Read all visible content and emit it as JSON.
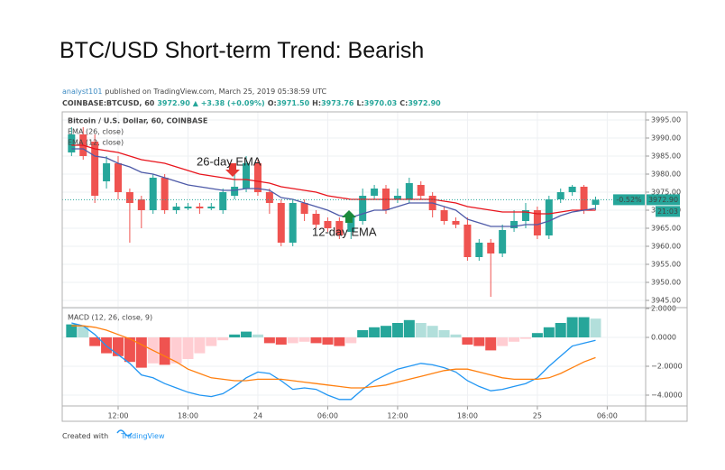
{
  "header": {
    "title": "BTC/USD Short-term Trend: Bearish",
    "author": "analyst101",
    "published": "published on TradingView.com, March 25, 2019 05:38:59 UTC",
    "symbol": "COINBASE:BTCUSD, 60",
    "price": "3972.90",
    "change": "▲ +3.38 (+0.09%)",
    "ohlc": [
      {
        "label": "O:",
        "value": "3971.50"
      },
      {
        "label": "H:",
        "value": "3973.76"
      },
      {
        "label": "L:",
        "value": "3970.03"
      },
      {
        "label": "C:",
        "value": "3972.90"
      }
    ]
  },
  "footer": {
    "text": "Created with",
    "brand": "TradingView"
  },
  "chart_data": [
    {
      "type": "candlestick",
      "legend_title": "Bitcoin / U.S. Dollar, 60, COINBASE",
      "up_color": "#26a69a",
      "down_color": "#ef5350",
      "open": [
        3986,
        3991,
        3989,
        3978,
        3983,
        3975,
        3973,
        3970,
        3979,
        3970,
        3970.5,
        3971,
        3970.5,
        3970,
        3974,
        3976,
        3983,
        3975,
        3972,
        3961,
        3972,
        3969,
        3967,
        3967,
        3964,
        3967,
        3974,
        3976,
        3973,
        3973,
        3977,
        3974,
        3970,
        3967,
        3966,
        3957,
        3961,
        3958,
        3965,
        3967,
        3970,
        3963,
        3973,
        3975,
        3976.5,
        3971.5
      ],
      "high": [
        3993,
        3993,
        3991,
        3985,
        3985,
        3976,
        3974,
        3980,
        3980,
        3972,
        3972,
        3972,
        3972,
        3976,
        3983,
        3985,
        3984,
        3976,
        3973,
        3973,
        3973,
        3970,
        3968,
        3968,
        3969,
        3976,
        3977,
        3977,
        3976,
        3979,
        3978,
        3975,
        3971,
        3968,
        3968,
        3962,
        3962,
        3966,
        3970,
        3972,
        3971,
        3974,
        3976,
        3977,
        3977,
        3973.76
      ],
      "low": [
        3985,
        3984,
        3972,
        3976,
        3973,
        3961,
        3965,
        3969,
        3969,
        3969,
        3970,
        3969,
        3970,
        3969,
        3973,
        3975,
        3974,
        3969,
        3960,
        3960,
        3967,
        3965,
        3964,
        3962,
        3962,
        3966,
        3973,
        3969,
        3972,
        3972,
        3973,
        3968,
        3966,
        3965,
        3956,
        3956,
        3946,
        3957,
        3964,
        3965,
        3962,
        3962,
        3972,
        3974,
        3969,
        3970.03
      ],
      "close": [
        3991,
        3985,
        3974,
        3983,
        3975,
        3972,
        3970,
        3979,
        3970,
        3971,
        3971,
        3970.5,
        3971,
        3975,
        3976.5,
        3983,
        3975,
        3972,
        3961,
        3972,
        3969,
        3966,
        3965,
        3963,
        3968,
        3974,
        3976,
        3970,
        3974,
        3977.5,
        3974,
        3970,
        3967,
        3966,
        3957,
        3961,
        3958,
        3964.5,
        3967,
        3970,
        3963,
        3973,
        3975,
        3976.5,
        3970,
        3972.9
      ],
      "series": [
        {
          "name": "EMA (26, close)",
          "color": "#e8141c",
          "values": [
            3988,
            3988,
            3987,
            3986.5,
            3986,
            3985,
            3984,
            3983.5,
            3983,
            3982,
            3981,
            3980,
            3979.5,
            3979,
            3978.5,
            3978.5,
            3978,
            3977.5,
            3976.5,
            3976,
            3975.5,
            3975,
            3974,
            3973.5,
            3973,
            3973,
            3973,
            3973,
            3973,
            3973,
            3973,
            3973,
            3972.5,
            3972,
            3971,
            3970.5,
            3970,
            3969.5,
            3969.5,
            3969.5,
            3969,
            3969,
            3969.5,
            3970,
            3970,
            3970
          ]
        },
        {
          "name": "EMA (12, close)",
          "color": "#4d5aa8",
          "values": [
            3987,
            3987,
            3985,
            3984.5,
            3983,
            3982,
            3980.5,
            3980,
            3979,
            3978,
            3977,
            3976.5,
            3976,
            3975.5,
            3975.5,
            3976,
            3976,
            3975.5,
            3973.5,
            3973,
            3972,
            3971,
            3970,
            3968.5,
            3968,
            3969,
            3970,
            3970,
            3971,
            3972,
            3972,
            3972,
            3971,
            3970,
            3967.5,
            3966.5,
            3965.5,
            3965.5,
            3965.5,
            3966,
            3966,
            3967,
            3968.5,
            3969.5,
            3970,
            3970.5
          ]
        }
      ],
      "annotations": [
        "26-day EMA",
        "12-day EMA"
      ],
      "last_price": {
        "change": "-0.52%",
        "price": "3972.90",
        "countdown": "21:03"
      },
      "xlim": [
        -0.8,
        49.3
      ],
      "ylim": [
        3943.25,
        3997.25
      ],
      "yticks": [
        {
          "value": 3995,
          "label": "3995.00"
        },
        {
          "value": 3990,
          "label": "3990.00"
        },
        {
          "value": 3985,
          "label": "3985.00"
        },
        {
          "value": 3980,
          "label": "3980.00"
        },
        {
          "value": 3975,
          "label": "3975.00"
        },
        {
          "value": 3970,
          "label": "3970.00"
        },
        {
          "value": 3965,
          "label": "3965.00"
        },
        {
          "value": 3960,
          "label": "3960.00"
        },
        {
          "value": 3955,
          "label": "3955.00"
        },
        {
          "value": 3950,
          "label": "3950.00"
        },
        {
          "value": 3945,
          "label": "3945.00"
        }
      ],
      "grid": true
    },
    {
      "type": "macd",
      "title": "MACD (12, 26, close, 9)",
      "histogram": [
        0.9,
        0.8,
        -0.6,
        -1.1,
        -1.3,
        -1.7,
        -2.1,
        -1.8,
        -1.9,
        -1.8,
        -1.5,
        -1.1,
        -0.6,
        -0.2,
        0.2,
        0.4,
        0.2,
        -0.4,
        -0.5,
        -0.4,
        -0.3,
        -0.4,
        -0.5,
        -0.6,
        -0.4,
        0.5,
        0.7,
        0.8,
        1.0,
        1.2,
        1.0,
        0.8,
        0.5,
        0.2,
        -0.5,
        -0.6,
        -0.9,
        -0.6,
        -0.3,
        -0.1,
        0.3,
        0.7,
        1.0,
        1.4,
        1.4,
        1.3
      ],
      "histogram_colors": {
        "up_rising": "#26a69a",
        "up_falling": "#b2dfdb",
        "down_falling": "#ef5350",
        "down_rising": "#ffcdd2"
      },
      "series": [
        {
          "color": "#2196f3",
          "values": [
            1.0,
            0.8,
            0.2,
            -0.6,
            -1.2,
            -1.8,
            -2.6,
            -2.8,
            -3.2,
            -3.5,
            -3.8,
            -4.0,
            -4.1,
            -3.9,
            -3.4,
            -2.8,
            -2.4,
            -2.5,
            -3.0,
            -3.6,
            -3.5,
            -3.6,
            -4.0,
            -4.3,
            -4.3,
            -3.6,
            -3.0,
            -2.6,
            -2.2,
            -2.0,
            -1.8,
            -1.9,
            -2.1,
            -2.4,
            -3.0,
            -3.4,
            -3.7,
            -3.6,
            -3.4,
            -3.2,
            -2.8,
            -2.0,
            -1.3,
            -0.6,
            -0.4,
            -0.2
          ]
        },
        {
          "color": "#ff7f0e",
          "values": [
            0.8,
            0.8,
            0.7,
            0.5,
            0.2,
            -0.1,
            -0.5,
            -0.9,
            -1.3,
            -1.7,
            -2.2,
            -2.5,
            -2.8,
            -2.9,
            -3.0,
            -3.0,
            -2.9,
            -2.9,
            -2.9,
            -3.0,
            -3.1,
            -3.2,
            -3.3,
            -3.4,
            -3.5,
            -3.5,
            -3.4,
            -3.3,
            -3.1,
            -2.9,
            -2.7,
            -2.5,
            -2.3,
            -2.2,
            -2.2,
            -2.4,
            -2.6,
            -2.8,
            -2.9,
            -2.9,
            -2.9,
            -2.8,
            -2.5,
            -2.1,
            -1.7,
            -1.4
          ]
        }
      ],
      "xlim": [
        -0.8,
        49.3
      ],
      "ylim": [
        -4.75,
        2.0
      ],
      "yticks": [
        {
          "value": 2,
          "label": "2.0000"
        },
        {
          "value": 0,
          "label": "0.0000"
        },
        {
          "value": -2,
          "label": "−2.0000"
        },
        {
          "value": -4,
          "label": "−4.0000"
        }
      ],
      "xticks": [
        {
          "value": 4,
          "label": "12:00"
        },
        {
          "value": 10,
          "label": "18:00"
        },
        {
          "value": 16,
          "label": "24"
        },
        {
          "value": 22,
          "label": "06:00"
        },
        {
          "value": 28,
          "label": "12:00"
        },
        {
          "value": 34,
          "label": "18:00"
        },
        {
          "value": 40,
          "label": "25"
        },
        {
          "value": 46,
          "label": "06:00"
        }
      ],
      "grid": true
    }
  ]
}
